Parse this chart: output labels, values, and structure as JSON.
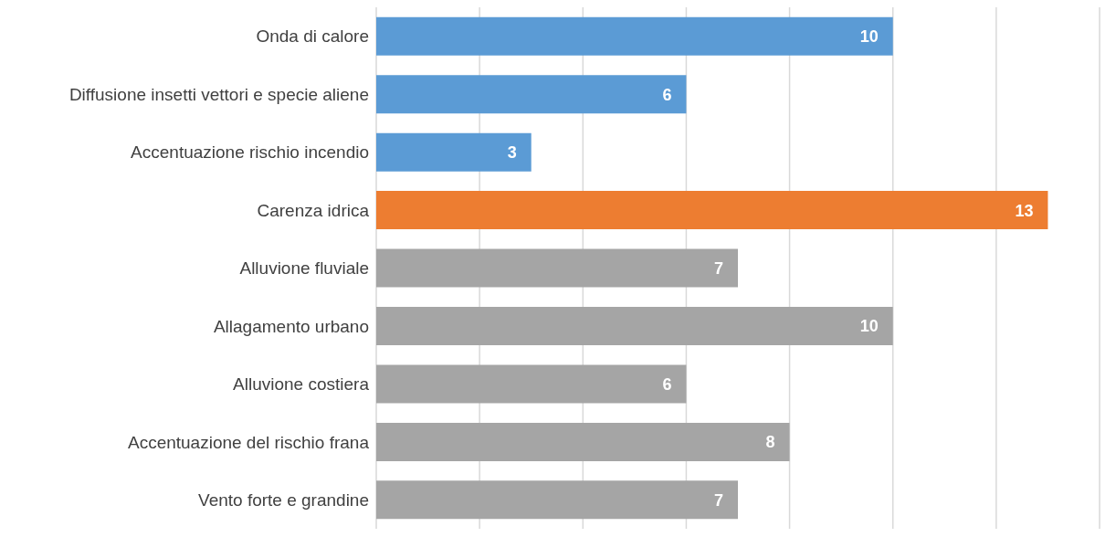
{
  "chart_data": {
    "type": "bar",
    "orientation": "horizontal",
    "categories": [
      "Onda di calore",
      "Diffusione insetti vettori e specie aliene",
      "Accentuazione rischio incendio",
      "Carenza idrica",
      "Alluvione fluviale",
      "Allagamento urbano",
      "Alluvione costiera",
      "Accentuazione del rischio frana",
      "Vento forte e grandine"
    ],
    "values": [
      10,
      6,
      3,
      13,
      7,
      10,
      6,
      8,
      7
    ],
    "colors": [
      "#5b9bd5",
      "#5b9bd5",
      "#5b9bd5",
      "#ed7d31",
      "#a5a5a5",
      "#a5a5a5",
      "#a5a5a5",
      "#a5a5a5",
      "#a5a5a5"
    ],
    "xlim": [
      0,
      14
    ],
    "tick_labels": "y",
    "grid": "x",
    "data_labels": true
  }
}
